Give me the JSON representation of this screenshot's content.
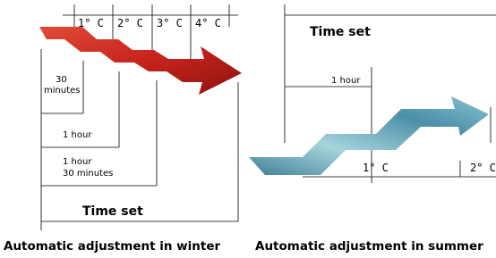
{
  "winter": {
    "temperatures": [
      "1° C",
      "2° C",
      "3° C",
      "4° C"
    ],
    "times": [
      [
        "30",
        "minutes"
      ],
      [
        "1 hour"
      ],
      [
        "1 hour",
        "30 minutes"
      ]
    ],
    "time_set": "Time set",
    "caption": "Automatic adjustment in winter"
  },
  "summer": {
    "time_set": "Time set",
    "time": "1 hour",
    "temperatures": [
      "1° C",
      "2° C"
    ],
    "caption": "Automatic adjustment in summer"
  }
}
